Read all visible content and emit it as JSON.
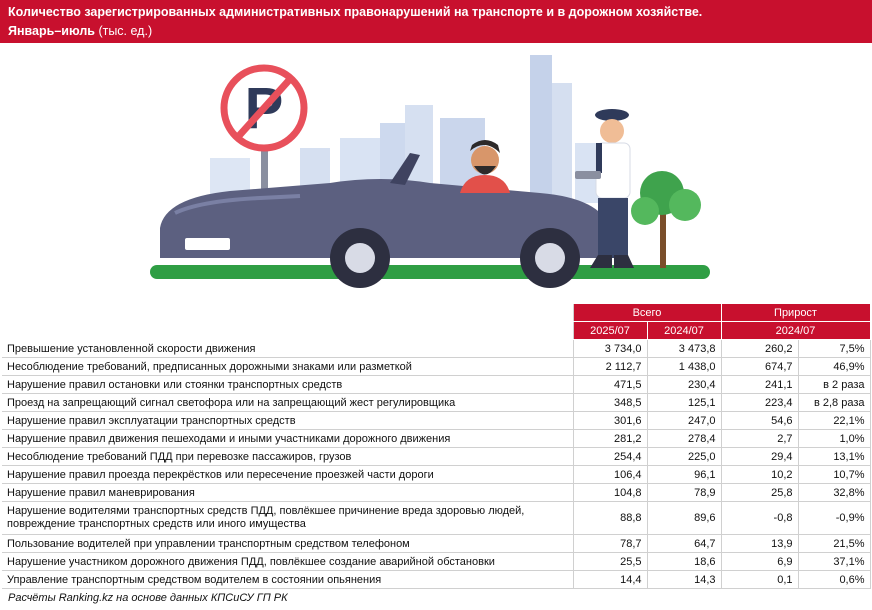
{
  "header": {
    "title": "Количество зарегистрированных административных правонарушений на транспорте и в дорожном хозяйстве.",
    "period": "Январь–июль",
    "unit": "(тыс. ед.)"
  },
  "illustration": {
    "sign_letter": "P",
    "icons": [
      "no-parking-sign-icon",
      "convertible-car-icon",
      "driver-icon",
      "police-officer-icon",
      "tree-icon",
      "city-skyline-icon"
    ],
    "colors": {
      "accent": "#c8102e",
      "car": "#5c6080",
      "grass": "#2f9e44",
      "sky": "#cdd9ee"
    }
  },
  "table": {
    "group_total": "Всего",
    "group_growth": "Прирост",
    "col_2025": "2025/07",
    "col_2024": "2024/07",
    "col_growth_period": "2024/07",
    "rows": [
      {
        "label": "Превышение установленной скорости движения",
        "v2025": "3 734,0",
        "v2024": "3 473,8",
        "abs": "260,2",
        "pct": "7,5%"
      },
      {
        "label": "Несоблюдение требований, предписанных дорожными знаками или разметкой",
        "v2025": "2 112,7",
        "v2024": "1 438,0",
        "abs": "674,7",
        "pct": "46,9%"
      },
      {
        "label": "Нарушение правил остановки или стоянки транспортных средств",
        "v2025": "471,5",
        "v2024": "230,4",
        "abs": "241,1",
        "pct": "в 2 раза"
      },
      {
        "label": "Проезд на запрещающий сигнал светофора или на запрещающий жест регулировщика",
        "v2025": "348,5",
        "v2024": "125,1",
        "abs": "223,4",
        "pct": "в 2,8 раза"
      },
      {
        "label": "Нарушение правил эксплуатации транспортных средств",
        "v2025": "301,6",
        "v2024": "247,0",
        "abs": "54,6",
        "pct": "22,1%"
      },
      {
        "label": "Нарушение правил движения пешеходами и иными участниками дорожного движения",
        "v2025": "281,2",
        "v2024": "278,4",
        "abs": "2,7",
        "pct": "1,0%"
      },
      {
        "label": "Несоблюдение требований ПДД при перевозке пассажиров, грузов",
        "v2025": "254,4",
        "v2024": "225,0",
        "abs": "29,4",
        "pct": "13,1%"
      },
      {
        "label": "Нарушение правил проезда перекрёстков или пересечение проезжей части дороги",
        "v2025": "106,4",
        "v2024": "96,1",
        "abs": "10,2",
        "pct": "10,7%"
      },
      {
        "label": "Нарушение правил маневрирования",
        "v2025": "104,8",
        "v2024": "78,9",
        "abs": "25,8",
        "pct": "32,8%"
      },
      {
        "label_line1": "Нарушение водителями транспортных средств ПДД, повлёкшее причинение вреда здоровью людей,",
        "label_line2": "повреждение транспортных средств или иного имущества",
        "v2025": "88,8",
        "v2024": "89,6",
        "abs": "-0,8",
        "pct": "-0,9%"
      },
      {
        "label": "Пользование водителей при управлении транспортным средством телефоном",
        "v2025": "78,7",
        "v2024": "64,7",
        "abs": "13,9",
        "pct": "21,5%"
      },
      {
        "label": "Нарушение участником дорожного движения ПДД, повлёкшее создание аварийной обстановки",
        "v2025": "25,5",
        "v2024": "18,6",
        "abs": "6,9",
        "pct": "37,1%"
      },
      {
        "label": "Управление транспортным средством водителем в состоянии опьянения",
        "v2025": "14,4",
        "v2024": "14,3",
        "abs": "0,1",
        "pct": "0,6%"
      }
    ]
  },
  "footer": {
    "source": "Расчёты Ranking.kz на основе данных КПСиСУ ГП РК"
  }
}
